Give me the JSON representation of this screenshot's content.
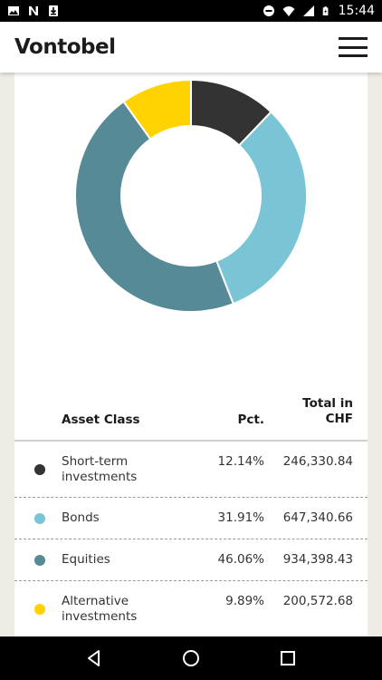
{
  "status_bar": {
    "time": "15:44",
    "icons": [
      "image-icon",
      "n-notification-icon",
      "download-icon",
      "do-not-disturb-icon",
      "wifi-icon",
      "signal-icon",
      "battery-charging-icon"
    ]
  },
  "app_bar": {
    "logo": "Vontobel",
    "menu_icon": "hamburger-menu-icon"
  },
  "chart_data": {
    "type": "pie",
    "style": "donut",
    "slices": [
      {
        "label": "Short-term investments",
        "value": 12.14,
        "color": "#333333"
      },
      {
        "label": "Bonds",
        "value": 31.91,
        "color": "#79c5d6"
      },
      {
        "label": "Equities",
        "value": 46.06,
        "color": "#578a97"
      },
      {
        "label": "Alternative investments",
        "value": 9.89,
        "color": "#ffd200"
      }
    ]
  },
  "table": {
    "headers": {
      "asset_class": "Asset Class",
      "pct": "Pct.",
      "total_line1": "Total in",
      "total_line2": "CHF"
    },
    "rows": [
      {
        "name_line1": "Short-term",
        "name_line2": "investments",
        "pct": "12.14%",
        "total": "246,330.84",
        "color": "#333333"
      },
      {
        "name_line1": "Bonds",
        "name_line2": "",
        "pct": "31.91%",
        "total": "647,340.66",
        "color": "#79c5d6"
      },
      {
        "name_line1": "Equities",
        "name_line2": "",
        "pct": "46.06%",
        "total": "934,398.43",
        "color": "#578a97"
      },
      {
        "name_line1": "Alternative",
        "name_line2": "investments",
        "pct": "9.89%",
        "total": "200,572.68",
        "color": "#ffd200"
      }
    ]
  },
  "nav_bar": {
    "icons": [
      "back-icon",
      "home-icon",
      "recents-icon"
    ]
  }
}
